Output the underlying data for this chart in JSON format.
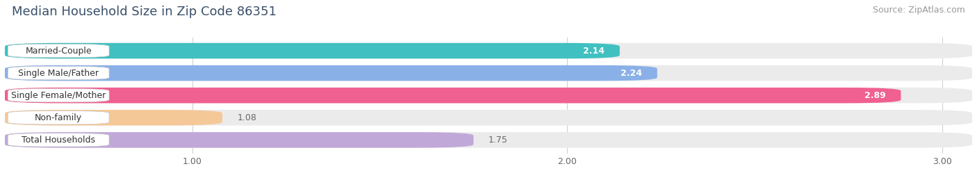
{
  "title": "Median Household Size in Zip Code 86351",
  "source": "Source: ZipAtlas.com",
  "categories": [
    "Married-Couple",
    "Single Male/Father",
    "Single Female/Mother",
    "Non-family",
    "Total Households"
  ],
  "values": [
    2.14,
    2.24,
    2.89,
    1.08,
    1.75
  ],
  "bar_colors": [
    "#40c0c0",
    "#8ab0e8",
    "#f06090",
    "#f5c898",
    "#c0a8d8"
  ],
  "xmin": 0.5,
  "xmax": 3.08,
  "xticks": [
    1.0,
    2.0,
    3.0
  ],
  "title_fontsize": 13,
  "source_fontsize": 9,
  "label_fontsize": 9,
  "value_fontsize": 9,
  "bar_height": 0.7,
  "bar_gap": 0.18,
  "background_color": "#ffffff",
  "bar_bg_color": "#ebebeb",
  "grid_color": "#d0d0d0",
  "title_color": "#3a5068",
  "value_color_inside": "#ffffff",
  "value_color_outside": "#666666",
  "label_color": "#333333"
}
